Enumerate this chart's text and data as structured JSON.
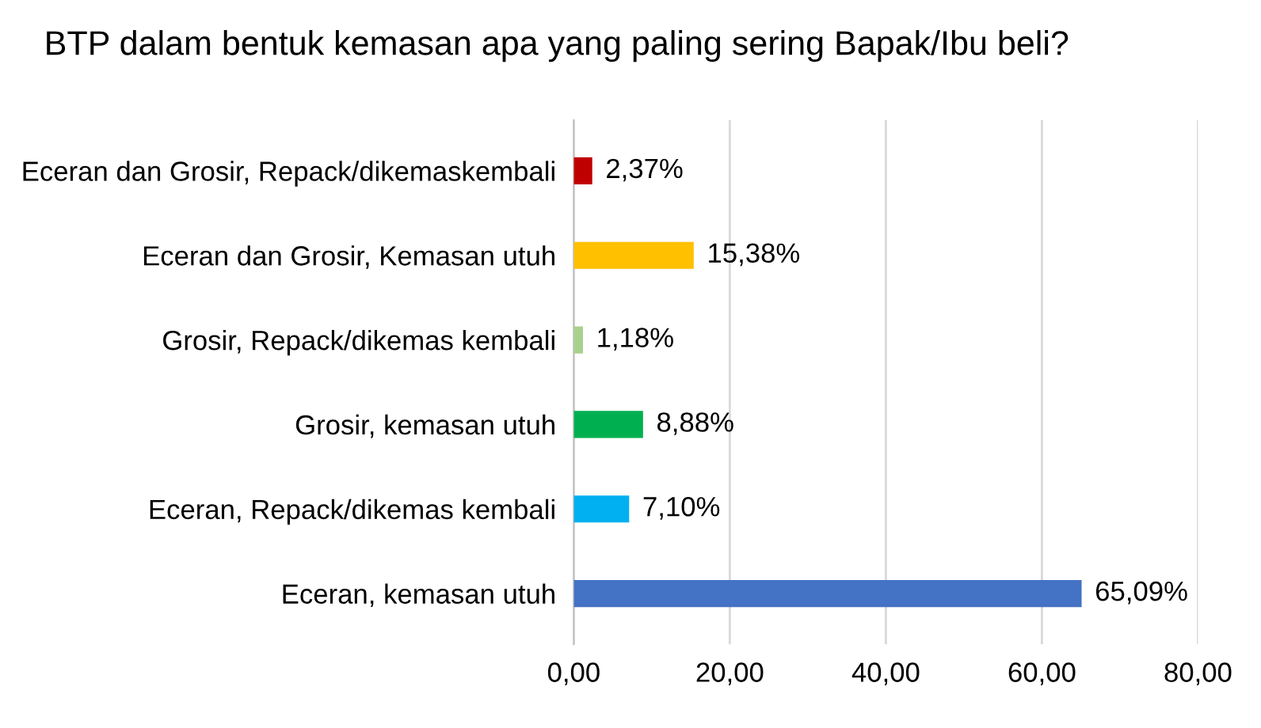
{
  "chart_data": {
    "type": "bar",
    "orientation": "horizontal",
    "title": "BTP dalam bentuk kemasan apa yang paling sering Bapak/Ibu beli?",
    "categories": [
      "Eceran dan Grosir, Repack/dikemaskembali",
      "Eceran dan Grosir, Kemasan utuh",
      "Grosir, Repack/dikemas kembali",
      "Grosir, kemasan utuh",
      "Eceran, Repack/dikemas kembali",
      "Eceran, kemasan utuh"
    ],
    "values": [
      2.37,
      15.38,
      1.18,
      8.88,
      7.1,
      65.09
    ],
    "value_labels": [
      "2,37%",
      "15,38%",
      "1,18%",
      "8,88%",
      "7,10%",
      "65,09%"
    ],
    "colors": [
      "#c00000",
      "#ffc000",
      "#a9d18e",
      "#00b050",
      "#00b0f0",
      "#4472c4"
    ],
    "xlim": [
      0,
      80
    ],
    "xticks": [
      {
        "value": 0,
        "label": "0,00"
      },
      {
        "value": 20,
        "label": "20,00"
      },
      {
        "value": 40,
        "label": "40,00"
      },
      {
        "value": 60,
        "label": "60,00"
      },
      {
        "value": 80,
        "label": "80,00"
      }
    ],
    "grid": "x",
    "legend": false
  }
}
